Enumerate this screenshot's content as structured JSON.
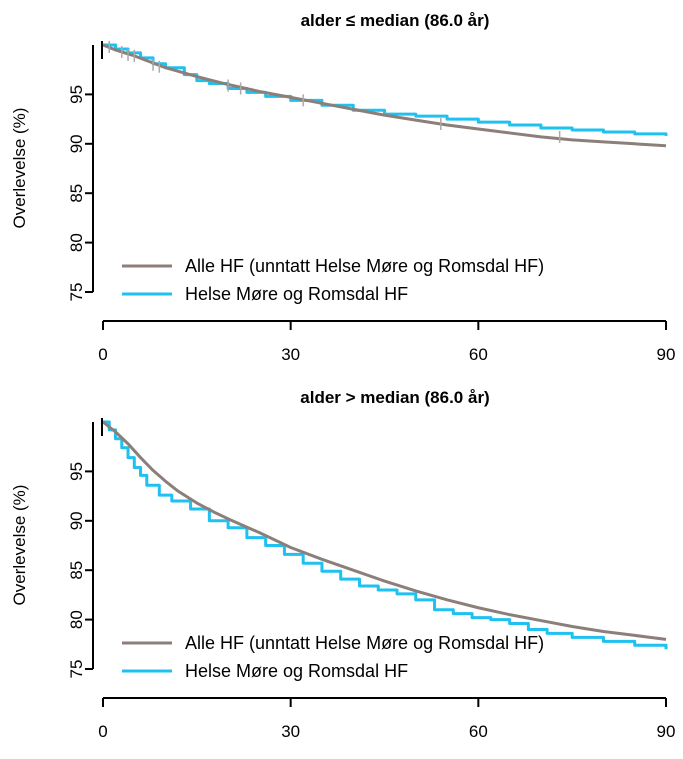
{
  "chart_data": [
    {
      "type": "line",
      "title": "alder ≤ median (86.0 år)",
      "xlabel": "",
      "ylabel": "Overlevelse (%)",
      "xlim": [
        0,
        90
      ],
      "ylim": [
        75,
        100
      ],
      "xticks": [
        "0",
        "30",
        "60",
        "90"
      ],
      "yticks": [
        "75",
        "80",
        "85",
        "90",
        "95"
      ],
      "legend_position": "bottom-left",
      "grid": false,
      "series": [
        {
          "name": "Alle HF (unntatt Helse Møre og Romsdal HF)",
          "color": "#8c7f7a",
          "step": false,
          "points": [
            [
              0,
              100
            ],
            [
              2,
              99.5
            ],
            [
              5,
              98.9
            ],
            [
              10,
              97.7
            ],
            [
              15,
              96.8
            ],
            [
              20,
              96.0
            ],
            [
              25,
              95.3
            ],
            [
              30,
              94.7
            ],
            [
              35,
              94.1
            ],
            [
              40,
              93.5
            ],
            [
              45,
              92.9
            ],
            [
              50,
              92.4
            ],
            [
              55,
              91.9
            ],
            [
              60,
              91.5
            ],
            [
              65,
              91.1
            ],
            [
              70,
              90.7
            ],
            [
              75,
              90.4
            ],
            [
              80,
              90.2
            ],
            [
              85,
              90.0
            ],
            [
              90,
              89.8
            ]
          ],
          "censor_marks": [
            [
              1,
              99.8
            ],
            [
              3,
              99.3
            ],
            [
              4,
              99.0
            ],
            [
              5,
              98.9
            ],
            [
              8,
              98.0
            ],
            [
              9,
              97.8
            ],
            [
              20,
              95.9
            ],
            [
              22,
              95.6
            ],
            [
              32,
              94.4
            ],
            [
              54,
              92.0
            ],
            [
              73,
              90.7
            ]
          ]
        },
        {
          "name": "Helse Møre og Romsdal HF",
          "color": "#1ec1ef",
          "step": true,
          "points": [
            [
              0,
              100
            ],
            [
              2,
              99.6
            ],
            [
              4,
              99.2
            ],
            [
              6,
              98.7
            ],
            [
              8,
              98.1
            ],
            [
              10,
              97.7
            ],
            [
              13,
              97.0
            ],
            [
              15,
              96.4
            ],
            [
              17,
              96.1
            ],
            [
              20,
              95.6
            ],
            [
              23,
              95.2
            ],
            [
              26,
              94.8
            ],
            [
              30,
              94.4
            ],
            [
              35,
              93.9
            ],
            [
              40,
              93.4
            ],
            [
              45,
              93.0
            ],
            [
              50,
              92.8
            ],
            [
              55,
              92.5
            ],
            [
              60,
              92.2
            ],
            [
              65,
              91.9
            ],
            [
              70,
              91.6
            ],
            [
              75,
              91.4
            ],
            [
              80,
              91.2
            ],
            [
              85,
              91.0
            ],
            [
              90,
              90.8
            ]
          ]
        }
      ]
    },
    {
      "type": "line",
      "title": "alder > median (86.0 år)",
      "xlabel": "",
      "ylabel": "Overlevelse (%)",
      "xlim": [
        0,
        90
      ],
      "ylim": [
        75,
        100
      ],
      "xticks": [
        "0",
        "30",
        "60",
        "90"
      ],
      "yticks": [
        "75",
        "80",
        "85",
        "90",
        "95"
      ],
      "legend_position": "bottom-left",
      "grid": false,
      "series": [
        {
          "name": "Alle HF (unntatt Helse Møre og Romsdal HF)",
          "color": "#8c7f7a",
          "step": false,
          "points": [
            [
              0,
              100
            ],
            [
              2,
              99.0
            ],
            [
              4,
              97.8
            ],
            [
              6,
              96.4
            ],
            [
              8,
              95.1
            ],
            [
              10,
              94.0
            ],
            [
              12,
              93.0
            ],
            [
              15,
              91.8
            ],
            [
              18,
              90.8
            ],
            [
              20,
              90.2
            ],
            [
              25,
              88.8
            ],
            [
              30,
              87.3
            ],
            [
              35,
              86.1
            ],
            [
              40,
              85.0
            ],
            [
              45,
              83.9
            ],
            [
              50,
              82.9
            ],
            [
              55,
              82.0
            ],
            [
              60,
              81.2
            ],
            [
              65,
              80.5
            ],
            [
              70,
              79.9
            ],
            [
              75,
              79.3
            ],
            [
              80,
              78.8
            ],
            [
              85,
              78.4
            ],
            [
              90,
              78.0
            ]
          ]
        },
        {
          "name": "Helse Møre og Romsdal HF",
          "color": "#1ec1ef",
          "step": true,
          "points": [
            [
              0,
              100
            ],
            [
              1,
              99.2
            ],
            [
              2,
              98.3
            ],
            [
              3,
              97.4
            ],
            [
              4,
              96.4
            ],
            [
              5,
              95.4
            ],
            [
              6,
              94.6
            ],
            [
              7,
              93.6
            ],
            [
              9,
              92.6
            ],
            [
              11,
              92.0
            ],
            [
              14,
              91.2
            ],
            [
              17,
              90.0
            ],
            [
              20,
              89.3
            ],
            [
              23,
              88.3
            ],
            [
              26,
              87.5
            ],
            [
              29,
              86.6
            ],
            [
              32,
              85.7
            ],
            [
              35,
              84.9
            ],
            [
              38,
              84.1
            ],
            [
              41,
              83.4
            ],
            [
              44,
              83.0
            ],
            [
              47,
              82.6
            ],
            [
              50,
              82.0
            ],
            [
              53,
              81.0
            ],
            [
              56,
              80.6
            ],
            [
              59,
              80.2
            ],
            [
              62,
              80.0
            ],
            [
              65,
              79.6
            ],
            [
              68,
              79.0
            ],
            [
              71,
              78.6
            ],
            [
              75,
              78.2
            ],
            [
              80,
              77.8
            ],
            [
              85,
              77.4
            ],
            [
              90,
              77.0
            ]
          ]
        }
      ]
    }
  ]
}
